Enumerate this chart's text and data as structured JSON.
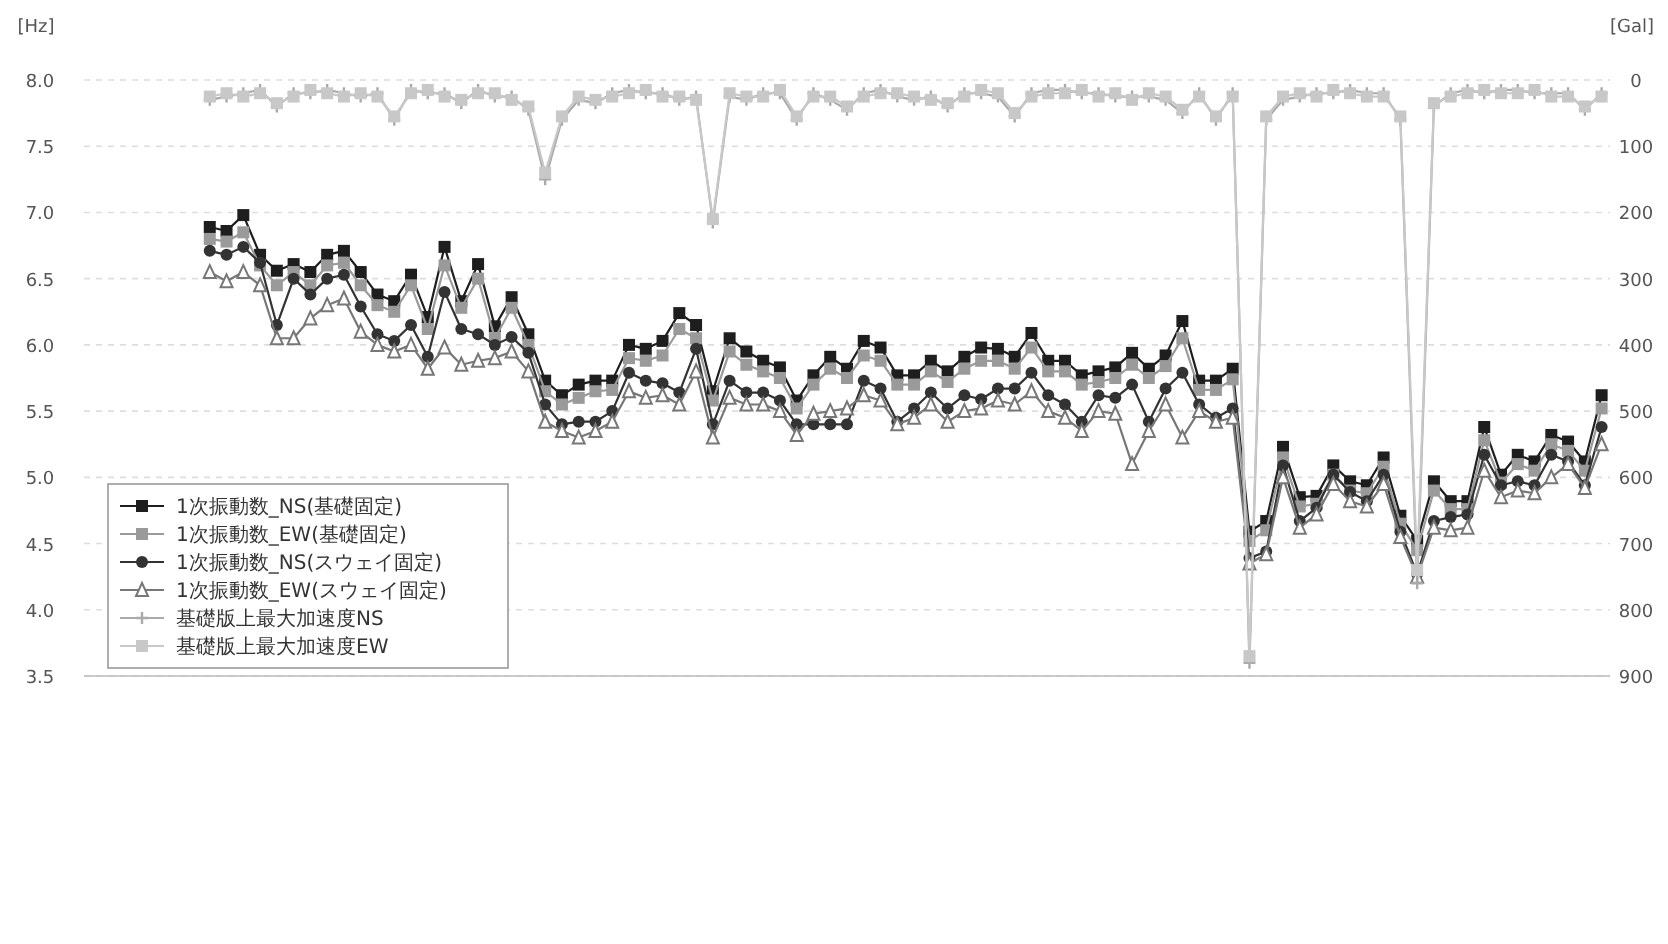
{
  "chart_data": {
    "type": "line",
    "ylabel": "[Hz]",
    "y2label": "[Gal]",
    "categories": [
      null,
      null,
      null,
      null,
      null,
      null,
      null,
      null,
      null,
      null,
      null,
      null,
      null,
      null,
      null,
      null,
      null,
      null,
      null,
      null,
      null,
      null,
      null,
      null,
      null,
      null,
      null,
      null,
      null,
      null,
      null,
      null,
      null,
      null,
      null,
      null,
      null,
      null,
      null,
      null,
      null,
      null,
      null,
      null,
      null,
      null,
      null,
      null,
      null,
      null,
      null,
      null,
      null,
      null,
      null,
      null,
      null,
      null,
      null,
      null,
      null,
      null,
      null,
      null,
      null,
      null,
      null,
      null,
      null,
      null,
      null,
      null,
      null,
      null,
      null,
      null,
      null,
      null,
      null,
      null,
      null,
      null,
      null,
      null,
      null,
      null,
      null,
      null,
      null,
      null,
      null
    ],
    "ylim": [
      3.5,
      8.0
    ],
    "yticks": [
      3.5,
      {
        "value": 4,
        "label": "4.0"
      },
      4.5,
      {
        "value": 5,
        "label": "5.0"
      },
      5.5,
      {
        "value": 6,
        "label": "6.0"
      },
      6.5,
      {
        "value": 7,
        "label": "7.0"
      },
      7.5,
      {
        "value": 8,
        "label": "8.0"
      }
    ],
    "y2lim": [
      900,
      0
    ],
    "y2ticks": [
      0,
      100,
      200,
      300,
      400,
      500,
      600,
      700,
      800,
      900
    ],
    "grid": "y",
    "legend": "bottom left",
    "line_style": "solid",
    "series": [
      {
        "name": "1次振動数_NS(基礎固定)",
        "color": "#1e1e1e",
        "marker": "square",
        "values": [
          null,
          null,
          null,
          null,
          null,
          null,
          null,
          6.89,
          6.86,
          6.98,
          6.68,
          6.56,
          6.61,
          6.55,
          6.68,
          6.71,
          6.55,
          6.38,
          6.33,
          6.53,
          6.21,
          6.74,
          6.33,
          6.61,
          6.14,
          6.36,
          6.08,
          5.73,
          5.62,
          5.7,
          5.73,
          5.73,
          6.0,
          5.97,
          6.03,
          6.24,
          6.15,
          5.65,
          6.05,
          5.95,
          5.88,
          5.83,
          5.58,
          5.77,
          5.91,
          5.82,
          6.03,
          5.98,
          5.77,
          5.77,
          5.88,
          5.8,
          5.91,
          5.98,
          5.97,
          5.91,
          6.09,
          5.88,
          5.88,
          5.77,
          5.8,
          5.83,
          5.94,
          5.82,
          5.92,
          6.18,
          5.73,
          5.73,
          5.82,
          4.59,
          4.67,
          5.23,
          4.85,
          4.86,
          5.09,
          4.97,
          4.94,
          5.15,
          4.71,
          4.52,
          4.97,
          4.82,
          4.82,
          5.38,
          5.02,
          5.17,
          5.12,
          5.32,
          5.27,
          5.12,
          5.62
        ]
      },
      {
        "name": "1次振動数_EW(基礎固定)",
        "color": "#9a9a9a",
        "marker": "square",
        "values": [
          null,
          null,
          null,
          null,
          null,
          null,
          null,
          6.8,
          6.78,
          6.85,
          6.6,
          6.45,
          6.55,
          6.45,
          6.6,
          6.62,
          6.45,
          6.3,
          6.25,
          6.45,
          6.12,
          6.6,
          6.28,
          6.5,
          6.05,
          6.28,
          6.0,
          5.65,
          5.55,
          5.6,
          5.65,
          5.66,
          5.9,
          5.88,
          5.92,
          6.12,
          6.05,
          5.58,
          5.95,
          5.85,
          5.8,
          5.75,
          5.52,
          5.7,
          5.82,
          5.75,
          5.92,
          5.88,
          5.7,
          5.7,
          5.8,
          5.72,
          5.82,
          5.88,
          5.88,
          5.82,
          5.98,
          5.8,
          5.8,
          5.7,
          5.72,
          5.75,
          5.85,
          5.75,
          5.84,
          6.05,
          5.66,
          5.66,
          5.74,
          4.52,
          4.6,
          5.15,
          4.78,
          4.8,
          5.02,
          4.9,
          4.88,
          5.08,
          4.65,
          4.45,
          4.9,
          4.76,
          4.76,
          5.28,
          4.96,
          5.1,
          5.05,
          5.25,
          5.2,
          5.05,
          5.52
        ]
      },
      {
        "name": "1次振動数_NS(スウェイ固定)",
        "color": "#333333",
        "marker": "circle",
        "values": [
          null,
          null,
          null,
          null,
          null,
          null,
          null,
          6.71,
          6.68,
          6.74,
          6.62,
          6.15,
          6.5,
          6.38,
          6.5,
          6.53,
          6.29,
          6.08,
          6.03,
          6.15,
          5.91,
          6.4,
          6.12,
          6.08,
          6.0,
          6.06,
          5.94,
          5.55,
          5.4,
          5.42,
          5.42,
          5.5,
          5.79,
          5.73,
          5.71,
          5.64,
          5.97,
          5.4,
          5.73,
          5.64,
          5.64,
          5.58,
          5.4,
          5.4,
          5.4,
          5.4,
          5.73,
          5.67,
          5.42,
          5.52,
          5.64,
          5.52,
          5.62,
          5.59,
          5.67,
          5.67,
          5.79,
          5.62,
          5.55,
          5.42,
          5.62,
          5.6,
          5.7,
          5.42,
          5.67,
          5.79,
          5.55,
          5.45,
          5.52,
          4.39,
          4.44,
          5.09,
          4.67,
          4.77,
          5.02,
          4.89,
          4.82,
          5.02,
          4.59,
          4.27,
          4.67,
          4.7,
          4.72,
          5.17,
          4.94,
          4.97,
          4.94,
          5.17,
          5.12,
          4.94,
          5.38
        ]
      },
      {
        "name": "1次振動数_EW(スウェイ固定)",
        "color": "#777777",
        "marker": "triangle",
        "values": [
          null,
          null,
          null,
          null,
          null,
          null,
          null,
          6.55,
          6.48,
          6.55,
          6.45,
          6.05,
          6.05,
          6.2,
          6.3,
          6.35,
          6.1,
          6.0,
          5.95,
          6.0,
          5.82,
          5.98,
          5.85,
          5.88,
          5.9,
          5.95,
          5.8,
          5.42,
          5.35,
          5.3,
          5.35,
          5.42,
          5.65,
          5.6,
          5.62,
          5.55,
          5.8,
          5.3,
          5.6,
          5.55,
          5.55,
          5.5,
          5.32,
          5.48,
          5.5,
          5.52,
          5.62,
          5.58,
          5.4,
          5.45,
          5.55,
          5.42,
          5.5,
          5.52,
          5.58,
          5.55,
          5.65,
          5.5,
          5.45,
          5.35,
          5.5,
          5.48,
          5.1,
          5.35,
          5.55,
          5.3,
          5.5,
          5.42,
          5.45,
          4.35,
          4.42,
          5.0,
          4.62,
          4.72,
          4.95,
          4.82,
          4.78,
          4.95,
          4.55,
          4.25,
          4.62,
          4.6,
          4.62,
          5.05,
          4.85,
          4.9,
          4.88,
          5.0,
          5.1,
          4.92,
          5.25
        ]
      },
      {
        "name": "基礎版上最大加速度NS",
        "color": "#aaaaaa",
        "marker": "cross",
        "axis": "y2",
        "values": [
          null,
          null,
          null,
          null,
          null,
          null,
          null,
          30,
          25,
          20,
          15,
          40,
          20,
          20,
          15,
          20,
          25,
          20,
          60,
          15,
          20,
          20,
          35,
          15,
          25,
          25,
          45,
          150,
          60,
          30,
          35,
          20,
          15,
          20,
          20,
          30,
          25,
          215,
          25,
          30,
          20,
          20,
          60,
          20,
          30,
          45,
          20,
          15,
          25,
          30,
          25,
          40,
          20,
          20,
          25,
          55,
          20,
          15,
          15,
          20,
          20,
          25,
          25,
          25,
          30,
          50,
          20,
          60,
          20,
          880,
          60,
          30,
          25,
          20,
          20,
          15,
          20,
          20,
          60,
          760,
          40,
          20,
          15,
          20,
          15,
          15,
          20,
          20,
          20,
          45,
          20
        ]
      },
      {
        "name": "基礎版上最大加速度EW",
        "color": "#c8c8c8",
        "marker": "square",
        "axis": "y2",
        "values": [
          null,
          null,
          null,
          null,
          null,
          null,
          null,
          25,
          20,
          25,
          20,
          35,
          25,
          15,
          20,
          25,
          20,
          25,
          55,
          20,
          15,
          25,
          30,
          20,
          20,
          30,
          40,
          140,
          55,
          25,
          30,
          25,
          20,
          15,
          25,
          25,
          30,
          210,
          20,
          25,
          25,
          15,
          55,
          25,
          25,
          40,
          25,
          20,
          20,
          25,
          30,
          35,
          25,
          15,
          20,
          50,
          25,
          20,
          20,
          15,
          25,
          20,
          30,
          20,
          25,
          45,
          25,
          55,
          25,
          870,
          55,
          25,
          20,
          25,
          15,
          20,
          25,
          25,
          55,
          740,
          35,
          25,
          20,
          15,
          20,
          20,
          15,
          25,
          25,
          40,
          25
        ]
      }
    ]
  }
}
